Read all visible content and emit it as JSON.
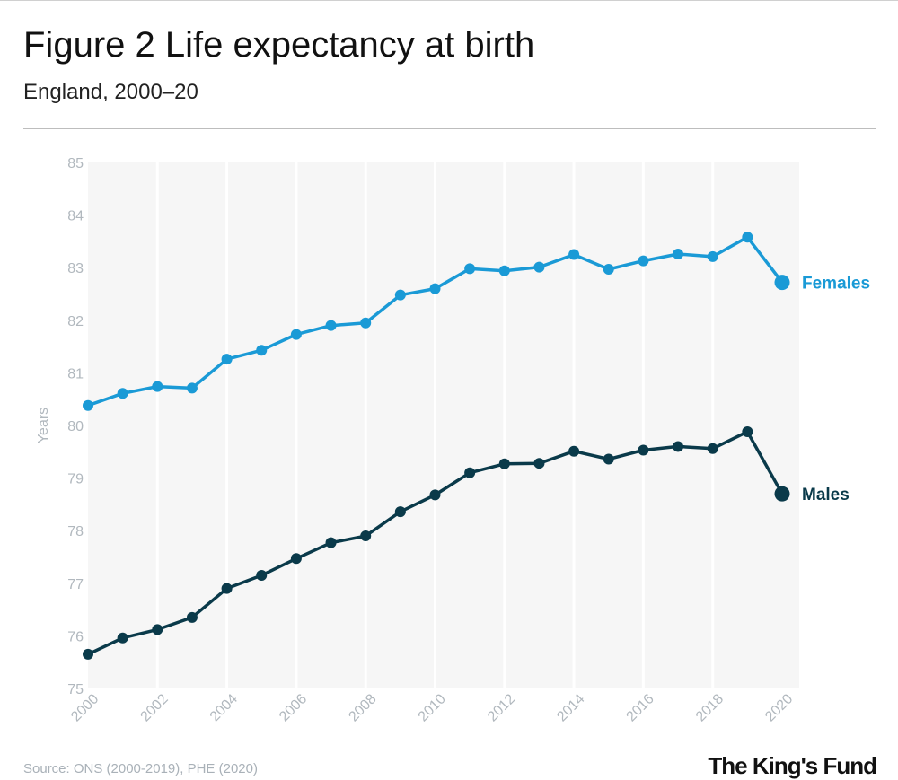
{
  "header": {
    "title": "Figure 2 Life expectancy at birth",
    "subtitle": "England, 2000–20"
  },
  "footer": {
    "source": "Source: ONS (2000-2019), PHE (2020)",
    "brand": "The King's Fund"
  },
  "chart_data": {
    "type": "line",
    "title": "Figure 2 Life expectancy at birth",
    "subtitle": "England, 2000–20",
    "xlabel": "",
    "ylabel": "Years",
    "x": [
      2000,
      2001,
      2002,
      2003,
      2004,
      2005,
      2006,
      2007,
      2008,
      2009,
      2010,
      2011,
      2012,
      2013,
      2014,
      2015,
      2016,
      2017,
      2018,
      2019,
      2020
    ],
    "xticks": [
      2000,
      2002,
      2004,
      2006,
      2008,
      2010,
      2012,
      2014,
      2016,
      2018,
      2020
    ],
    "yticks": [
      75,
      76,
      77,
      78,
      79,
      80,
      81,
      82,
      83,
      84,
      85
    ],
    "xlim": [
      2000,
      2020
    ],
    "ylim": [
      75,
      85
    ],
    "grid": "vertical",
    "legend": "direct labels at line ends",
    "series": [
      {
        "name": "Females",
        "color": "#1a9ad6",
        "values": [
          80.38,
          80.61,
          80.74,
          80.71,
          81.26,
          81.43,
          81.73,
          81.9,
          81.95,
          82.48,
          82.6,
          82.98,
          82.94,
          83.01,
          83.25,
          82.97,
          83.13,
          83.26,
          83.21,
          83.58,
          82.72
        ]
      },
      {
        "name": "Males",
        "color": "#0a3a4a",
        "values": [
          75.65,
          75.96,
          76.12,
          76.35,
          76.9,
          77.15,
          77.47,
          77.77,
          77.9,
          78.36,
          78.68,
          79.1,
          79.27,
          79.28,
          79.51,
          79.36,
          79.53,
          79.6,
          79.56,
          79.88,
          78.7
        ]
      }
    ]
  }
}
